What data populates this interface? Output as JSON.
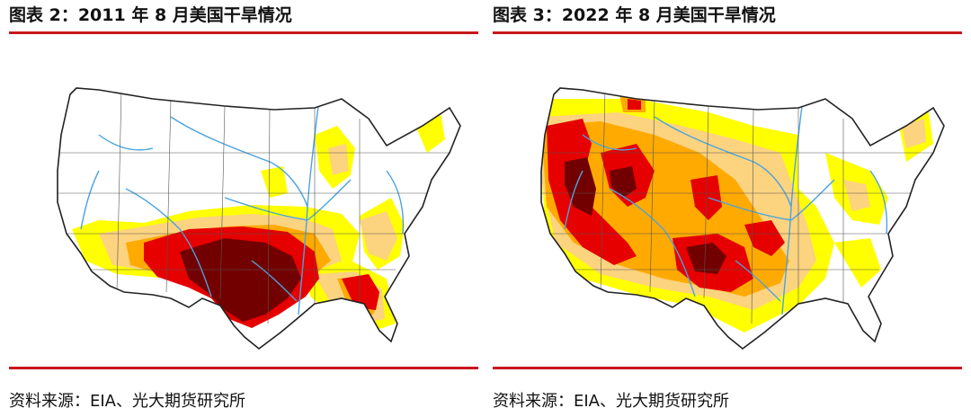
{
  "panels": [
    {
      "title": "图表 2：2011 年 8 月美国干旱情况",
      "source": "资料来源：EIA、光大期货研究所"
    },
    {
      "title": "图表 3：2022 年 8 月美国干旱情况",
      "source": "资料来源：EIA、光大期货研究所"
    }
  ],
  "colors": {
    "abnormally_dry": "#ffff00",
    "moderate": "#fcd37f",
    "severe": "#ffaa00",
    "extreme": "#e60000",
    "exceptional": "#730000",
    "rivers": "#4aa3df",
    "rule": "#c8161d"
  }
}
